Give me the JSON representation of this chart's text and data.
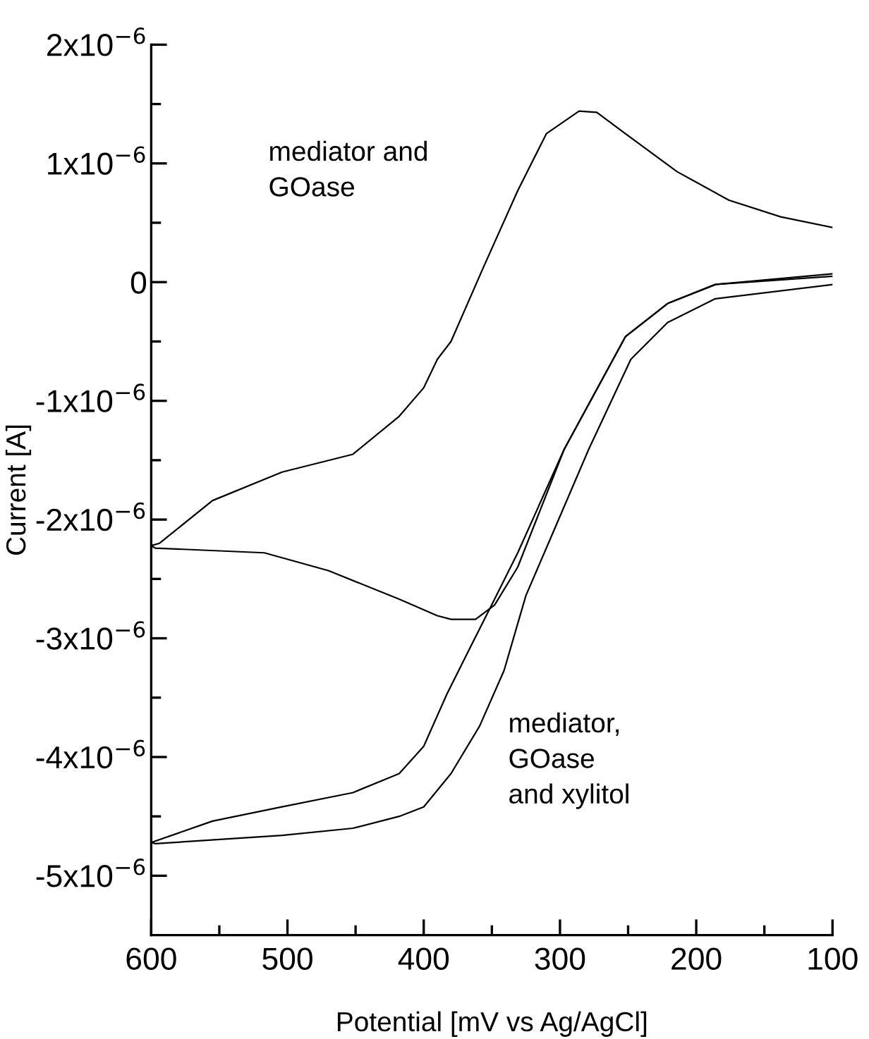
{
  "chart_data": {
    "type": "line",
    "xlabel": "Potential [mV vs Ag/AgCl]",
    "ylabel": "Current [A]",
    "series": [
      {
        "color": "#000000",
        "x": [
          600,
          594,
          555,
          504,
          452,
          418,
          400,
          390,
          380,
          356,
          331,
          310,
          286,
          273,
          252,
          214,
          176,
          138,
          100
        ],
        "values": [
          -2.22e-06,
          -2.2e-06,
          -1.84e-06,
          -1.6e-06,
          -1.45e-06,
          -1.13e-06,
          -8.9e-07,
          -6.5e-07,
          -5e-07,
          1.3e-07,
          7.7e-07,
          1.25e-06,
          1.44e-06,
          1.43e-06,
          1.25e-06,
          9.3e-07,
          6.9e-07,
          5.5e-07,
          4.6e-07
        ]
      },
      {
        "color": "#000000",
        "x": [
          600,
          597,
          517,
          470,
          418,
          390,
          380,
          362,
          348,
          331,
          297,
          252,
          221,
          186,
          100
        ],
        "values": [
          -2.22e-06,
          -2.24e-06,
          -2.28e-06,
          -2.43e-06,
          -2.67e-06,
          -2.81e-06,
          -2.84e-06,
          -2.84e-06,
          -2.72e-06,
          -2.4e-06,
          -1.41e-06,
          -4.6e-07,
          -1.8e-07,
          -2e-08,
          7e-08
        ]
      },
      {
        "color": "#000000",
        "x": [
          600,
          555,
          504,
          452,
          418,
          400,
          383,
          366,
          348,
          331,
          297,
          252,
          221,
          186,
          100
        ],
        "values": [
          -4.72e-06,
          -4.54e-06,
          -4.42e-06,
          -4.3e-06,
          -4.14e-06,
          -3.91e-06,
          -3.47e-06,
          -3.08e-06,
          -2.67e-06,
          -2.28e-06,
          -1.41e-06,
          -4.6e-07,
          -1.8e-07,
          -2e-08,
          5e-08
        ]
      },
      {
        "color": "#000000",
        "x": [
          600,
          597,
          504,
          452,
          418,
          400,
          380,
          359,
          341,
          325,
          307,
          279,
          248,
          221,
          186,
          100
        ],
        "values": [
          -4.72e-06,
          -4.73e-06,
          -4.66e-06,
          -4.6e-06,
          -4.5e-06,
          -4.42e-06,
          -4.14e-06,
          -3.74e-06,
          -3.27e-06,
          -2.64e-06,
          -2.16e-06,
          -1.41e-06,
          -6.5e-07,
          -3.4e-07,
          -1.4e-07,
          -2e-08
        ]
      }
    ],
    "annotations": [
      "mediator and\nGOase",
      "mediator,\nGOase\nand xylitol"
    ],
    "xlim": [
      600,
      100
    ],
    "xticks": [
      600,
      {
        "value": 550,
        "label": null
      },
      500,
      {
        "value": 450,
        "label": null
      },
      400,
      {
        "value": 350,
        "label": null
      },
      300,
      {
        "value": 250,
        "label": null
      },
      200,
      {
        "value": 150,
        "label": null
      },
      100
    ],
    "ylim": [
      -5.5e-06,
      2e-06
    ],
    "yticks": [
      {
        "value": -5e-06,
        "label": "-5x10$^{−6}$"
      },
      {
        "value": -4.5e-06,
        "label": null
      },
      {
        "value": -4e-06,
        "label": "-4x10$^{−6}$"
      },
      {
        "value": -3.5e-06,
        "label": null
      },
      {
        "value": -3e-06,
        "label": "-3x10$^{−6}$"
      },
      {
        "value": -2.5e-06,
        "label": null
      },
      {
        "value": -2e-06,
        "label": "-2x10$^{−6}$"
      },
      {
        "value": -1.5e-06,
        "label": null
      },
      {
        "value": -1e-06,
        "label": "-1x10$^{−6}$"
      },
      {
        "value": -5e-07,
        "label": null
      },
      {
        "value": 0,
        "label": "0"
      },
      {
        "value": 5e-07,
        "label": null
      },
      {
        "value": 1e-06,
        "label": "1x10$^{−6}$"
      },
      {
        "value": 1.5e-06,
        "label": null
      },
      {
        "value": 2e-06,
        "label": "2x10$^{−6}$"
      }
    ],
    "grid": false,
    "marker": "none",
    "line_style": "solid"
  }
}
